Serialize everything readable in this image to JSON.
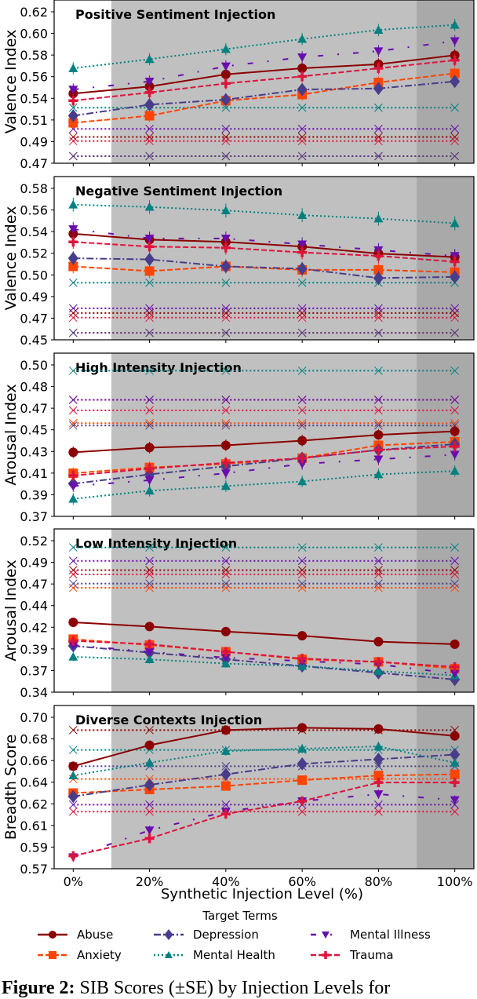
{
  "chart_data": {
    "type": "line",
    "x": [
      "0%",
      "20%",
      "40%",
      "60%",
      "80%",
      "100%"
    ],
    "x_values": [
      0,
      20,
      40,
      60,
      80,
      100
    ],
    "xlabel": "Synthetic Injection Level (%)",
    "xlim": [
      -5,
      105
    ],
    "shaded_regions": [
      {
        "from": 10,
        "to": 90,
        "color": "#c0c0c0"
      },
      {
        "from": 90,
        "to": 105,
        "color": "#a9a9a9"
      }
    ],
    "legend": {
      "title": "Target Terms",
      "placement": "bottom"
    },
    "series_styles": {
      "Abuse": {
        "color": "#8b0000",
        "marker": "circle",
        "dash": "solid"
      },
      "Anxiety": {
        "color": "#ff4500",
        "marker": "square",
        "dash": "dashed"
      },
      "Depression": {
        "color": "#483d8b",
        "marker": "diamond",
        "dash": "dashdot"
      },
      "Mental Health": {
        "color": "#008080",
        "marker": "triangle-up",
        "dash": "dotted"
      },
      "Mental Illness": {
        "color": "#6a0dad",
        "marker": "triangle-down",
        "dash": "loose-dashdot"
      },
      "Trauma": {
        "color": "#dc143c",
        "marker": "plus",
        "dash": "dashed"
      }
    },
    "legend_order": [
      "Abuse",
      "Anxiety",
      "Depression",
      "Mental Health",
      "Mental Illness",
      "Trauma"
    ],
    "panels": [
      {
        "title": "Positive Sentiment Injection",
        "ylabel": "Valence Index",
        "yticks": [
          "0.62",
          "0.60",
          "0.58",
          "0.56",
          "0.54",
          "0.51",
          "0.49",
          "0.47"
        ],
        "ylim": [
          0.47,
          0.62
        ],
        "se": 0.006,
        "series": [
          {
            "name": "Abuse",
            "values": [
              0.539,
              0.546,
              0.558,
              0.564,
              0.568,
              0.577
            ],
            "baseline": 0.496
          },
          {
            "name": "Anxiety",
            "values": [
              0.51,
              0.517,
              0.532,
              0.538,
              0.55,
              0.559
            ],
            "baseline": 0.477
          },
          {
            "name": "Depression",
            "values": [
              0.517,
              0.528,
              0.533,
              0.543,
              0.544,
              0.551
            ],
            "baseline": 0.477
          },
          {
            "name": "Mental Health",
            "values": [
              0.564,
              0.573,
              0.583,
              0.593,
              0.602,
              0.607
            ],
            "baseline": 0.525
          },
          {
            "name": "Mental Illness",
            "values": [
              0.543,
              0.551,
              0.566,
              0.575,
              0.581,
              0.591
            ],
            "baseline": 0.504
          },
          {
            "name": "Trauma",
            "values": [
              0.532,
              0.54,
              0.549,
              0.556,
              0.564,
              0.572
            ],
            "baseline": 0.492
          }
        ]
      },
      {
        "title": "Negative Sentiment Injection",
        "ylabel": "Valence Index",
        "yticks": [
          "0.58",
          "0.56",
          "0.54",
          "0.52",
          "0.50",
          "0.49",
          "0.47",
          "0.45"
        ],
        "ylim": [
          0.45,
          0.58
        ],
        "se": 0.006,
        "series": [
          {
            "name": "Abuse",
            "values": [
              0.541,
              0.536,
              0.534,
              0.53,
              0.524,
              0.521
            ],
            "baseline": 0.473
          },
          {
            "name": "Anxiety",
            "values": [
              0.513,
              0.509,
              0.513,
              0.51,
              0.51,
              0.508
            ],
            "baseline": 0.456
          },
          {
            "name": "Depression",
            "values": [
              0.52,
              0.519,
              0.513,
              0.511,
              0.503,
              0.504
            ],
            "baseline": 0.456
          },
          {
            "name": "Mental Health",
            "values": [
              0.566,
              0.564,
              0.561,
              0.557,
              0.554,
              0.55
            ],
            "baseline": 0.499
          },
          {
            "name": "Mental Illness",
            "values": [
              0.545,
              0.537,
              0.537,
              0.532,
              0.527,
              0.522
            ],
            "baseline": 0.477
          },
          {
            "name": "Trauma",
            "values": [
              0.534,
              0.53,
              0.529,
              0.525,
              0.522,
              0.517
            ],
            "baseline": 0.469
          }
        ]
      },
      {
        "title": "High Intensity Injection",
        "ylabel": "Arousal Index",
        "yticks": [
          "0.50",
          "0.48",
          "0.47",
          "0.45",
          "0.43",
          "0.41",
          "0.39",
          "0.37"
        ],
        "ylim": [
          0.37,
          0.5
        ],
        "se": 0.005,
        "series": [
          {
            "name": "Abuse",
            "values": [
              0.425,
              0.429,
              0.431,
              0.435,
              0.44,
              0.443
            ],
            "baseline": 0.47
          },
          {
            "name": "Anxiety",
            "values": [
              0.407,
              0.412,
              0.415,
              0.42,
              0.431,
              0.434
            ],
            "baseline": 0.45
          },
          {
            "name": "Depression",
            "values": [
              0.398,
              0.406,
              0.413,
              0.42,
              0.427,
              0.432
            ],
            "baseline": 0.448
          },
          {
            "name": "Mental Health",
            "values": [
              0.385,
              0.392,
              0.396,
              0.4,
              0.406,
              0.409
            ],
            "baseline": 0.495
          },
          {
            "name": "Mental Illness",
            "values": [
              0.396,
              0.401,
              0.407,
              0.415,
              0.419,
              0.423
            ],
            "baseline": 0.47
          },
          {
            "name": "Trauma",
            "values": [
              0.405,
              0.411,
              0.416,
              0.42,
              0.427,
              0.43
            ],
            "baseline": 0.461
          }
        ]
      },
      {
        "title": "Low Intensity Injection",
        "ylabel": "Arousal Index",
        "yticks": [
          "0.52",
          "0.49",
          "0.47",
          "0.44",
          "0.42",
          "0.39",
          "0.37",
          "0.34"
        ],
        "ylim": [
          0.34,
          0.52
        ],
        "se": 0.005,
        "series": [
          {
            "name": "Abuse",
            "values": [
              0.423,
              0.418,
              0.412,
              0.407,
              0.4,
              0.397
            ],
            "baseline": 0.485
          },
          {
            "name": "Anxiety",
            "values": [
              0.403,
              0.396,
              0.388,
              0.379,
              0.376,
              0.368
            ],
            "baseline": 0.464
          },
          {
            "name": "Depression",
            "values": [
              0.395,
              0.387,
              0.379,
              0.371,
              0.363,
              0.355
            ],
            "baseline": 0.469
          },
          {
            "name": "Mental Health",
            "values": [
              0.382,
              0.379,
              0.374,
              0.371,
              0.365,
              0.36
            ],
            "baseline": 0.512
          },
          {
            "name": "Mental Illness",
            "values": [
              0.396,
              0.388,
              0.381,
              0.377,
              0.373,
              0.362
            ],
            "baseline": 0.496
          },
          {
            "name": "Trauma",
            "values": [
              0.401,
              0.397,
              0.388,
              0.38,
              0.376,
              0.37
            ],
            "baseline": 0.48
          }
        ]
      },
      {
        "title": "Diverse Contexts Injection",
        "ylabel": "Breadth Score",
        "yticks": [
          "0.70",
          "0.68",
          "0.66",
          "0.64",
          "0.62",
          "0.61",
          "0.59",
          "0.57"
        ],
        "ylim": [
          0.57,
          0.7
        ],
        "se": 0.004,
        "series": [
          {
            "name": "Abuse",
            "values": [
              0.658,
              0.676,
              0.689,
              0.691,
              0.69,
              0.684
            ],
            "baseline": 0.689
          },
          {
            "name": "Anxiety",
            "values": [
              0.635,
              0.638,
              0.641,
              0.646,
              0.65,
              0.651
            ],
            "baseline": 0.647
          },
          {
            "name": "Depression",
            "values": [
              0.632,
              0.642,
              0.651,
              0.66,
              0.664,
              0.668
            ],
            "baseline": 0.658
          },
          {
            "name": "Mental Health",
            "values": [
              0.65,
              0.661,
              0.671,
              0.673,
              0.675,
              0.661
            ],
            "baseline": 0.672
          },
          {
            "name": "Mental Illness",
            "values": [
              0.58,
              0.603,
              0.619,
              0.628,
              0.634,
              0.629
            ],
            "baseline": 0.625
          },
          {
            "name": "Trauma",
            "values": [
              0.581,
              0.596,
              0.617,
              0.628,
              0.644,
              0.644
            ],
            "baseline": 0.619
          }
        ]
      }
    ]
  },
  "caption": {
    "label": "Figure 2:",
    "text": "SIB Scores (±SE) by Injection Levels for"
  }
}
